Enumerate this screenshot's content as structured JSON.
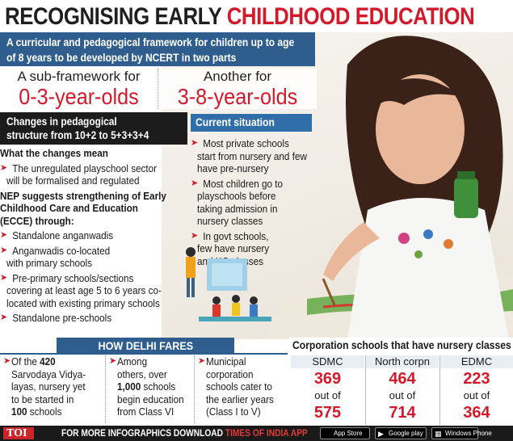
{
  "title": {
    "part1": "RECOGNISING EARLY",
    "part2": "CHILDHOOD EDUCATION"
  },
  "banner": {
    "line1": "A curricular and pedagogical framework for children up to age",
    "line2": "of 8 years to be developed by NCERT in two parts"
  },
  "subframeworks": [
    {
      "label": "A sub-framework for",
      "value": "0-3-year-olds"
    },
    {
      "label": "Another for",
      "value": "3-8-year-olds"
    }
  ],
  "changes": {
    "header_line1": "Changes in pedagogical",
    "header_line2": "structure from 10+2 to 5+3+3+4",
    "what_means": "What the changes mean",
    "item1_line1": "The unregulated playschool sector",
    "item1_line2": "will be formalised and regulated",
    "nep_line1": "NEP suggests strengthening of Early",
    "nep_line2": "Childhood Care and Education",
    "nep_line3": "(ECCE) through:",
    "list": [
      {
        "l1": "Standalone anganwadis",
        "l2": ""
      },
      {
        "l1": "Anganwadis co-located",
        "l2": "with primary schools"
      },
      {
        "l1": "Pre-primary schools/sections",
        "l2": "covering at least age 5 to 6 years co-",
        "l3": "located with existing primary schools"
      },
      {
        "l1": "Standalone pre-schools",
        "l2": ""
      }
    ]
  },
  "current": {
    "header": "Current situation",
    "items": [
      {
        "l1": "Most private schools",
        "l2": "start from nursery and few",
        "l3": "have pre-nursery"
      },
      {
        "l1": "Most children go to",
        "l2": "playschools before",
        "l3": "taking admission in",
        "l4": "nursery classes"
      },
      {
        "l1": "In govt schools,",
        "l2": "few have nursery",
        "l3": "and KG classes"
      }
    ]
  },
  "delhi": {
    "header": "HOW DELHI FARES",
    "col1": {
      "l1a": "Of the ",
      "l1b": "420",
      "l2": "Sarvodaya Vidya-",
      "l3": "layas, nursery yet",
      "l4": "to be started in",
      "l5b": "100",
      "l5a": " schools"
    },
    "col2": {
      "l1": "Among",
      "l2": "others, over",
      "l3b": "1,000",
      "l3a": " schools",
      "l4": "begin education",
      "l5": "from Class VI"
    },
    "col3": {
      "l1": "Municipal",
      "l2": "corporation",
      "l3": "schools cater to",
      "l4": "the earlier years",
      "l5": "(Class I to V)"
    }
  },
  "corporation": {
    "header": "Corporation schools that have nursery classes",
    "columns": [
      {
        "name": "SDMC",
        "with_nursery": "369",
        "out_of": "out of",
        "total": "575"
      },
      {
        "name": "North corpn",
        "with_nursery": "464",
        "out_of": "out of",
        "total": "714"
      },
      {
        "name": "EDMC",
        "with_nursery": "223",
        "out_of": "out of",
        "total": "364"
      }
    ]
  },
  "footer": {
    "logo": "TOI",
    "text_plain": "FOR MORE  INFOGRAPHICS DOWNLOAD ",
    "text_red": "TIMES OF INDIA APP",
    "app_store": "App Store",
    "google_play": "Google play",
    "windows": "Windows Phone"
  },
  "colors": {
    "accent_red": "#d21a2b",
    "banner_blue": "#2f5d8e",
    "header_blue": "#2f6ea8",
    "dark": "#1c1c1c"
  }
}
